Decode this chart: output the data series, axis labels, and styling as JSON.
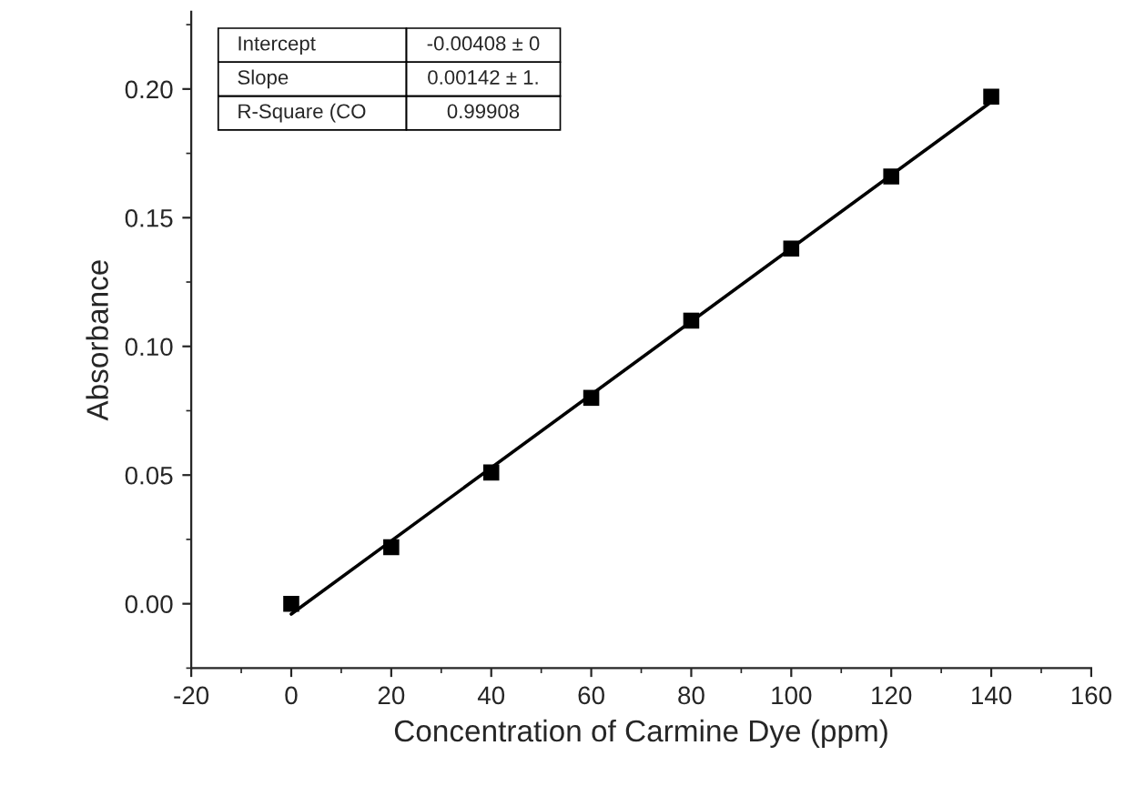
{
  "chart_data": {
    "type": "scatter",
    "xlabel": "Concentration of Carmine Dye (ppm)",
    "ylabel": "Absorbance",
    "x": [
      0,
      20,
      40,
      60,
      80,
      100,
      120,
      140
    ],
    "series": [
      {
        "color": "#000000",
        "marker": "square",
        "values": [
          0.0,
          0.022,
          0.051,
          0.08,
          0.11,
          0.138,
          0.166,
          0.197
        ]
      },
      {
        "type": "line",
        "color": "#000000",
        "x": [
          0,
          140
        ],
        "values": [
          -0.004,
          0.195
        ],
        "line_style": "solid"
      }
    ],
    "xlim": [
      -20,
      160
    ],
    "xticks": [
      -20,
      0,
      20,
      40,
      60,
      80,
      100,
      120,
      140,
      160
    ],
    "ylim": [
      -0.025,
      0.23
    ],
    "yticks": [
      {
        "value": 0,
        "label": "0.00"
      },
      0.05,
      {
        "value": 0.1,
        "label": "0.10"
      },
      0.15,
      {
        "value": 0.2,
        "label": "0.20"
      }
    ],
    "annotations": [
      "Intercept",
      "-0.00408 ± 0",
      "Slope",
      "0.00142 ± 1.",
      "R-Square (CO",
      "0.99908"
    ],
    "grid": false,
    "legend": false
  }
}
